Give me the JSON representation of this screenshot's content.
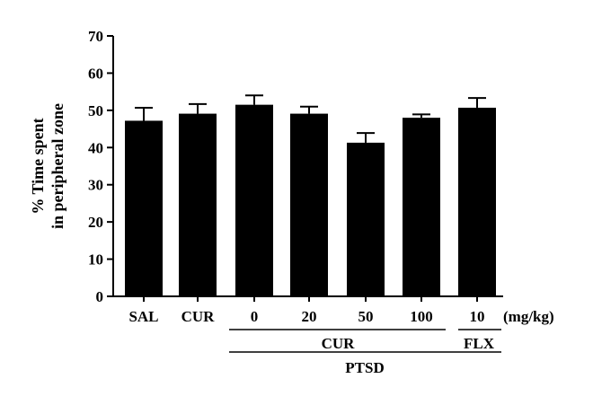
{
  "chart_data": {
    "type": "bar",
    "categories": [
      "SAL",
      "CUR",
      "0",
      "20",
      "50",
      "100",
      "10"
    ],
    "values": [
      47.2,
      49.1,
      51.5,
      49.1,
      41.3,
      48.0,
      50.7
    ],
    "errors": [
      3.5,
      2.6,
      2.5,
      1.9,
      2.6,
      0.9,
      2.6
    ],
    "ylabel_lines": [
      "% Time spent",
      "in peripheral zone"
    ],
    "xunit": "(mg/kg)",
    "ylim": [
      0,
      70
    ],
    "yticks": [
      0,
      10,
      20,
      30,
      40,
      50,
      60,
      70
    ],
    "group_labels": {
      "cur": "CUR",
      "flx": "FLX",
      "ptsd": "PTSD"
    },
    "bar_color": "#000000",
    "grid": false,
    "legend": "none"
  }
}
